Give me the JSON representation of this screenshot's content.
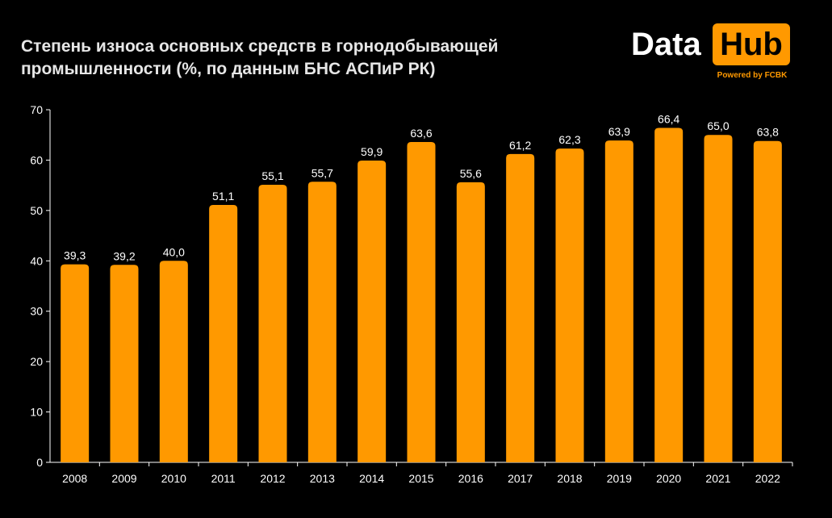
{
  "title": {
    "line1": "Степень износа основных средств в горнодобывающей",
    "line2": "промышленности (%, по данным БНС АСПиР РК)"
  },
  "logo": {
    "word1": "Data",
    "word2": "Hub",
    "powered": "Powered by FCBK"
  },
  "colors": {
    "background": "#000000",
    "bar": "#ff9900",
    "text": "#ffffff"
  },
  "chart_data": {
    "type": "bar",
    "title": "Степень износа основных средств в горнодобывающей промышленности (%, по данным БНС АСПиР РК)",
    "xlabel": "",
    "ylabel": "",
    "ylim": [
      0,
      70
    ],
    "yticks": [
      0,
      10,
      20,
      30,
      40,
      50,
      60,
      70
    ],
    "grid": false,
    "legend": "none",
    "categories": [
      "2008",
      "2009",
      "2010",
      "2011",
      "2012",
      "2013",
      "2014",
      "2015",
      "2016",
      "2017",
      "2018",
      "2019",
      "2020",
      "2021",
      "2022"
    ],
    "values": [
      39.3,
      39.2,
      40.0,
      51.1,
      55.1,
      55.7,
      59.9,
      63.6,
      55.6,
      61.2,
      62.3,
      63.9,
      66.4,
      65.0,
      63.8
    ],
    "data_labels": [
      "39,3",
      "39,2",
      "40,0",
      "51,1",
      "55,1",
      "55,7",
      "59,9",
      "63,6",
      "55,6",
      "61,2",
      "62,3",
      "63,9",
      "66,4",
      "65,0",
      "63,8"
    ]
  }
}
